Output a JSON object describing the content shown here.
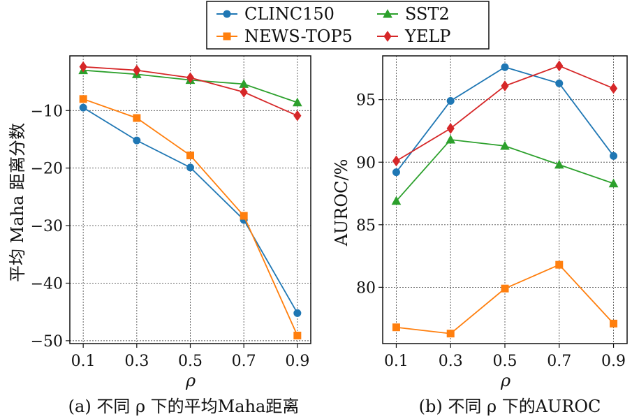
{
  "legend": {
    "items": [
      {
        "name": "CLINC150",
        "color": "#1f77b4",
        "marker": "circle"
      },
      {
        "name": "SST2",
        "color": "#2ca02c",
        "marker": "triangle"
      },
      {
        "name": "NEWS-TOP5",
        "color": "#ff7f0e",
        "marker": "square"
      },
      {
        "name": "YELP",
        "color": "#d62728",
        "marker": "diamond"
      }
    ]
  },
  "chart_data": [
    {
      "type": "line",
      "caption": "(a) 不同 ρ 下的平均Maha距离",
      "xlabel": "ρ",
      "ylabel": "平均 Maha 距离分数",
      "x": [
        0.1,
        0.3,
        0.5,
        0.7,
        0.9
      ],
      "xtick_labels": [
        "0.1",
        "0.3",
        "0.5",
        "0.7",
        "0.9"
      ],
      "xlim": [
        0.05,
        0.95
      ],
      "ylim": [
        -50.5,
        -0.5
      ],
      "yticks": [
        -10,
        -20,
        -30,
        -40,
        -50
      ],
      "ytick_labels": [
        "−10",
        "−20",
        "−30",
        "−40",
        "−50"
      ],
      "grid": true,
      "series": [
        {
          "name": "CLINC150",
          "values": [
            -9.5,
            -15.2,
            -19.9,
            -29.0,
            -45.2
          ]
        },
        {
          "name": "NEWS-TOP5",
          "values": [
            -8.0,
            -11.3,
            -17.8,
            -28.3,
            -49.1
          ]
        },
        {
          "name": "SST2",
          "values": [
            -3.0,
            -3.7,
            -4.7,
            -5.4,
            -8.6
          ]
        },
        {
          "name": "YELP",
          "values": [
            -2.4,
            -3.0,
            -4.3,
            -6.8,
            -10.9
          ]
        }
      ]
    },
    {
      "type": "line",
      "caption": "(b) 不同 ρ 下的AUROC",
      "xlabel": "ρ",
      "ylabel": "AUROC/%",
      "x": [
        0.1,
        0.3,
        0.5,
        0.7,
        0.9
      ],
      "xtick_labels": [
        "0.1",
        "0.3",
        "0.5",
        "0.7",
        "0.9"
      ],
      "xlim": [
        0.05,
        0.95
      ],
      "ylim": [
        75.5,
        98.5
      ],
      "yticks": [
        80,
        85,
        90,
        95
      ],
      "ytick_labels": [
        "80",
        "85",
        "90",
        "95"
      ],
      "grid": true,
      "series": [
        {
          "name": "CLINC150",
          "values": [
            89.2,
            94.9,
            97.6,
            96.3,
            90.5
          ]
        },
        {
          "name": "NEWS-TOP5",
          "values": [
            76.8,
            76.3,
            79.9,
            81.8,
            77.1
          ]
        },
        {
          "name": "SST2",
          "values": [
            86.9,
            91.8,
            91.3,
            89.8,
            88.3
          ]
        },
        {
          "name": "YELP",
          "values": [
            90.1,
            92.7,
            96.1,
            97.7,
            95.9
          ]
        }
      ]
    }
  ]
}
